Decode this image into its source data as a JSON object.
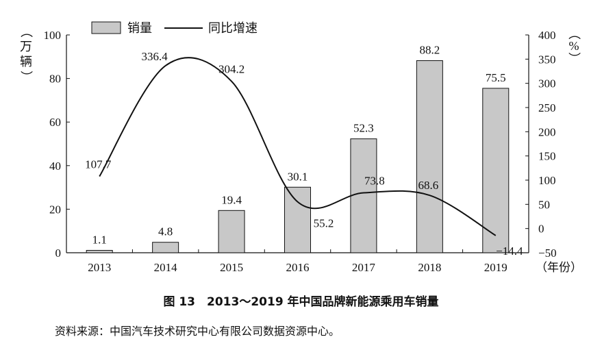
{
  "chart_data": {
    "type": "bar+line",
    "categories": [
      "2013",
      "2014",
      "2015",
      "2016",
      "2017",
      "2018",
      "2019"
    ],
    "series": [
      {
        "name": "销量",
        "kind": "bar",
        "axis": "left",
        "color": "#c8c8c8",
        "values": [
          1.1,
          4.8,
          19.4,
          30.1,
          52.3,
          88.2,
          75.5
        ],
        "labels": [
          "1.1",
          "4.8",
          "19.4",
          "30.1",
          "52.3",
          "88.2",
          "75.5"
        ]
      },
      {
        "name": "同比增速",
        "kind": "line",
        "axis": "right",
        "color": "#111111",
        "values": [
          107.7,
          336.4,
          304.2,
          55.2,
          73.8,
          68.6,
          -14.4
        ],
        "labels": [
          "107.7",
          "336.4",
          "304.2",
          "55.2",
          "73.8",
          "68.6",
          "−14.4"
        ]
      }
    ],
    "y_left": {
      "label": "（万辆）",
      "min": 0,
      "max": 100,
      "ticks": [
        0,
        20,
        40,
        60,
        80,
        100
      ]
    },
    "y_right": {
      "label": "（%）",
      "min": -50,
      "max": 400,
      "ticks": [
        -50,
        0,
        50,
        100,
        150,
        200,
        250,
        300,
        350,
        400
      ]
    },
    "x_unit": "（年份）",
    "legend_position": "top-left",
    "grid": false
  },
  "caption": "图 13　2013～2019 年中国品牌新能源乘用车销量",
  "source": "资料来源：中国汽车技术研究中心有限公司数据资源中心。"
}
